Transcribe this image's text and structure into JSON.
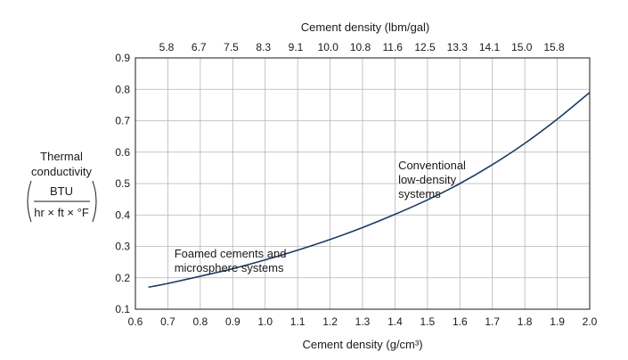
{
  "chart_data": {
    "type": "line",
    "title": "",
    "xlabel": "Cement density (g/cm³)",
    "x2label": "Cement density (lbm/gal)",
    "ylabel": {
      "line1": "Thermal",
      "line2": "conductivity",
      "numerator": "BTU",
      "denominator": "hr × ft × °F"
    },
    "xlim": [
      0.6,
      2.0
    ],
    "ylim": [
      0.1,
      0.9
    ],
    "grid": true,
    "x_ticks": [
      "0.6",
      "0.7",
      "0.8",
      "0.9",
      "1.0",
      "1.1",
      "1.2",
      "1.3",
      "1.4",
      "1.5",
      "1.6",
      "1.7",
      "1.8",
      "1.9",
      "2.0"
    ],
    "x2_ticks": [
      "5.8",
      "6.7",
      "7.5",
      "8.3",
      "9.1",
      "10.0",
      "10.8",
      "11.6",
      "12.5",
      "13.3",
      "14.1",
      "15.0",
      "15.8"
    ],
    "y_ticks": [
      "0.1",
      "0.2",
      "0.3",
      "0.4",
      "0.5",
      "0.6",
      "0.7",
      "0.8",
      "0.9"
    ],
    "series": [
      {
        "x": [
          0.64,
          0.7,
          0.8,
          0.9,
          1.0,
          1.1,
          1.2,
          1.3,
          1.4,
          1.5,
          1.6,
          1.7,
          1.8,
          1.9,
          2.0
        ],
        "y": [
          0.17,
          0.182,
          0.205,
          0.229,
          0.257,
          0.288,
          0.322,
          0.36,
          0.402,
          0.448,
          0.5,
          0.56,
          0.628,
          0.705,
          0.79
        ]
      }
    ],
    "annotations": [
      {
        "lines": [
          "Foamed cements and",
          "microsphere systems"
        ],
        "x": 0.72,
        "y": 0.265
      },
      {
        "lines": [
          "Conventional",
          "low-density",
          "systems"
        ],
        "x": 1.41,
        "y": 0.545
      }
    ],
    "colors": {
      "line": "#1a3a63",
      "grid": "#b5b5b5",
      "frame": "#1a1a1a",
      "text": "#1a1a1a"
    }
  }
}
